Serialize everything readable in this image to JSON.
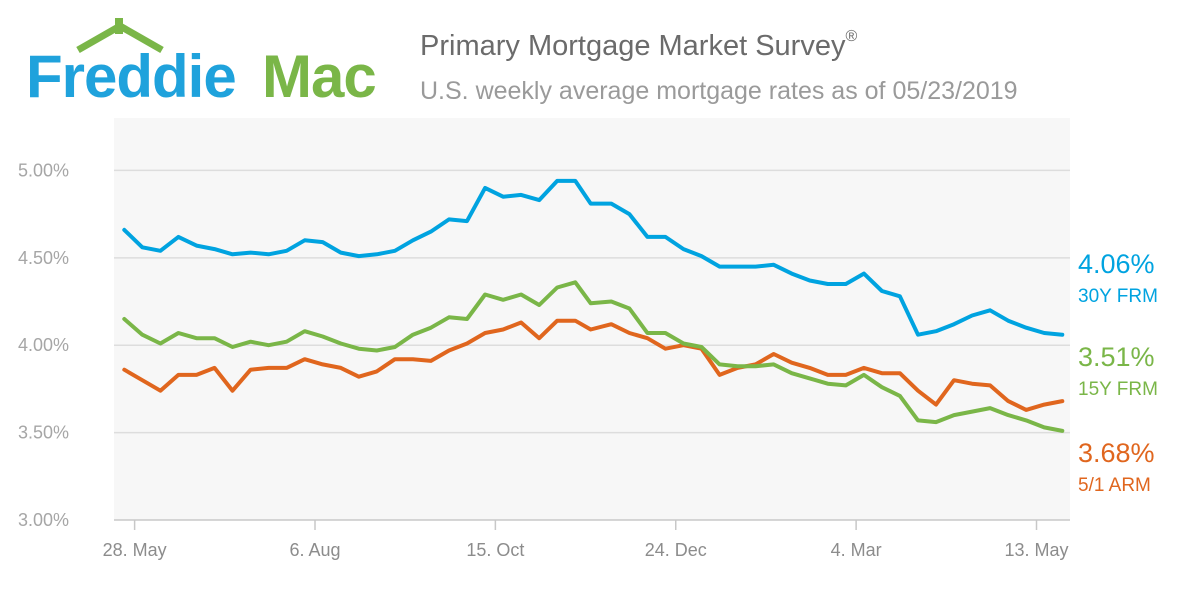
{
  "logo": {
    "text_part1": "Freddie",
    "text_part2": "Mac"
  },
  "header": {
    "title": "Primary Mortgage Market Survey",
    "title_mark": "®",
    "subtitle": "U.S. weekly average mortgage rates as of 05/23/2019"
  },
  "colors": {
    "frm30": "#00a3e0",
    "frm15": "#7ab648",
    "arm51": "#e0661e",
    "logo_blue": "#1fa2dc",
    "logo_green": "#7ab648"
  },
  "legend": [
    {
      "rate": "4.06%",
      "name": "30Y FRM"
    },
    {
      "rate": "3.51%",
      "name": "15Y FRM"
    },
    {
      "rate": "3.68%",
      "name": "5/1 ARM"
    }
  ],
  "chart_data": {
    "type": "line",
    "ylim": [
      3.0,
      5.3
    ],
    "y_ticks": [
      3.0,
      3.5,
      4.0,
      4.5,
      5.0
    ],
    "y_tick_labels": [
      "3.00%",
      "3.50%",
      "4.00%",
      "4.50%",
      "5.00%"
    ],
    "x_tick_labels": [
      "28. May",
      "6. Aug",
      "15. Oct",
      "24. Dec",
      "4. Mar",
      "13. May"
    ],
    "x_tick_dates": [
      "2018-05-28",
      "2018-08-06",
      "2018-10-15",
      "2018-12-24",
      "2019-03-04",
      "2019-05-13"
    ],
    "x_dates": [
      "2018-05-24",
      "2018-05-31",
      "2018-06-07",
      "2018-06-14",
      "2018-06-21",
      "2018-06-28",
      "2018-07-05",
      "2018-07-12",
      "2018-07-19",
      "2018-07-26",
      "2018-08-02",
      "2018-08-09",
      "2018-08-16",
      "2018-08-23",
      "2018-08-30",
      "2018-09-06",
      "2018-09-13",
      "2018-09-20",
      "2018-09-27",
      "2018-10-04",
      "2018-10-11",
      "2018-10-18",
      "2018-10-25",
      "2018-11-01",
      "2018-11-08",
      "2018-11-15",
      "2018-11-21",
      "2018-11-29",
      "2018-12-06",
      "2018-12-13",
      "2018-12-20",
      "2018-12-27",
      "2019-01-03",
      "2019-01-10",
      "2019-01-17",
      "2019-01-24",
      "2019-01-31",
      "2019-02-07",
      "2019-02-14",
      "2019-02-21",
      "2019-02-28",
      "2019-03-07",
      "2019-03-14",
      "2019-03-21",
      "2019-03-28",
      "2019-04-04",
      "2019-04-11",
      "2019-04-18",
      "2019-04-25",
      "2019-05-02",
      "2019-05-09",
      "2019-05-16",
      "2019-05-23"
    ],
    "series": [
      {
        "name": "30Y FRM",
        "values": [
          4.66,
          4.56,
          4.54,
          4.62,
          4.57,
          4.55,
          4.52,
          4.53,
          4.52,
          4.54,
          4.6,
          4.59,
          4.53,
          4.51,
          4.52,
          4.54,
          4.6,
          4.65,
          4.72,
          4.71,
          4.9,
          4.85,
          4.86,
          4.83,
          4.94,
          4.94,
          4.81,
          4.81,
          4.75,
          4.62,
          4.62,
          4.55,
          4.51,
          4.45,
          4.45,
          4.45,
          4.46,
          4.41,
          4.37,
          4.35,
          4.35,
          4.41,
          4.31,
          4.28,
          4.06,
          4.08,
          4.12,
          4.17,
          4.2,
          4.14,
          4.1,
          4.07,
          4.06
        ]
      },
      {
        "name": "15Y FRM",
        "values": [
          4.15,
          4.06,
          4.01,
          4.07,
          4.04,
          4.04,
          3.99,
          4.02,
          4.0,
          4.02,
          4.08,
          4.05,
          4.01,
          3.98,
          3.97,
          3.99,
          4.06,
          4.1,
          4.16,
          4.15,
          4.29,
          4.26,
          4.29,
          4.23,
          4.33,
          4.36,
          4.24,
          4.25,
          4.21,
          4.07,
          4.07,
          4.01,
          3.99,
          3.89,
          3.88,
          3.88,
          3.89,
          3.84,
          3.81,
          3.78,
          3.77,
          3.83,
          3.76,
          3.71,
          3.57,
          3.56,
          3.6,
          3.62,
          3.64,
          3.6,
          3.57,
          3.53,
          3.51
        ]
      },
      {
        "name": "5/1 ARM",
        "values": [
          3.86,
          3.8,
          3.74,
          3.83,
          3.83,
          3.87,
          3.74,
          3.86,
          3.87,
          3.87,
          3.92,
          3.89,
          3.87,
          3.82,
          3.85,
          3.92,
          3.92,
          3.91,
          3.97,
          4.01,
          4.07,
          4.09,
          4.13,
          4.04,
          4.14,
          4.14,
          4.09,
          4.12,
          4.07,
          4.04,
          3.98,
          4.0,
          3.98,
          3.83,
          3.87,
          3.89,
          3.95,
          3.9,
          3.87,
          3.83,
          3.83,
          3.87,
          3.84,
          3.84,
          3.74,
          3.66,
          3.8,
          3.78,
          3.77,
          3.68,
          3.63,
          3.66,
          3.68
        ]
      }
    ]
  }
}
